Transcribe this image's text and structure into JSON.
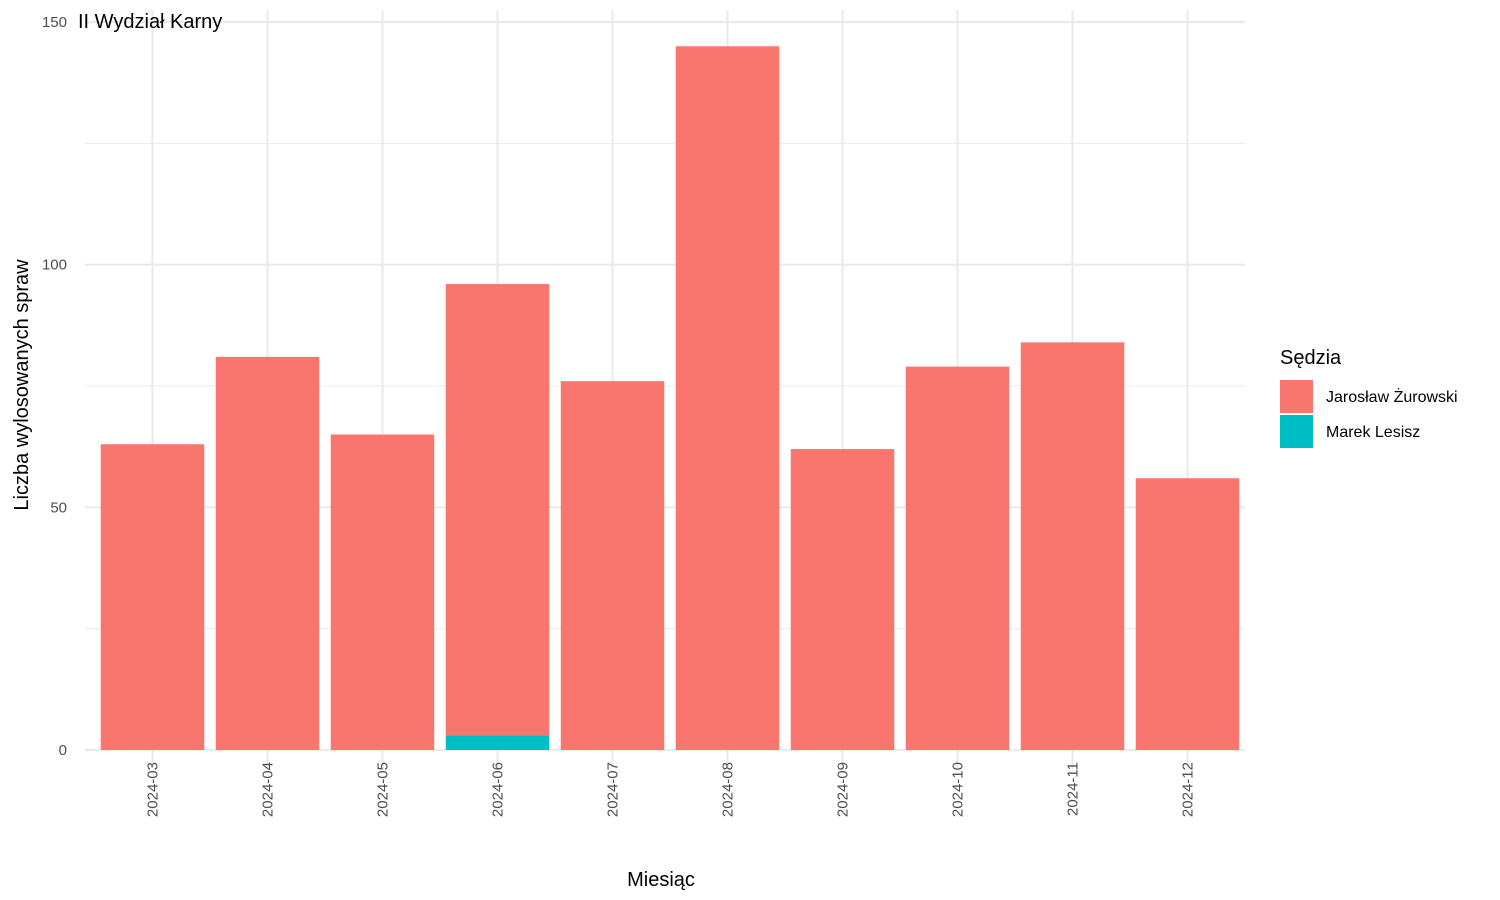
{
  "chart_data": {
    "type": "bar",
    "stacked": true,
    "title": "II Wydział Karny",
    "xlabel": "Miesiąc",
    "ylabel": "Liczba wylosowanych spraw",
    "categories": [
      "2024-03",
      "2024-04",
      "2024-05",
      "2024-06",
      "2024-07",
      "2024-08",
      "2024-09",
      "2024-10",
      "2024-11",
      "2024-12"
    ],
    "series": [
      {
        "name": "Jarosław Żurowski",
        "color": "#F8766D",
        "values": [
          63,
          81,
          65,
          93,
          76,
          145,
          62,
          79,
          84,
          56
        ]
      },
      {
        "name": "Marek Lesisz",
        "color": "#00BFC4",
        "values": [
          0,
          0,
          0,
          3,
          0,
          0,
          0,
          0,
          0,
          0
        ]
      }
    ],
    "ylim": [
      0,
      150
    ],
    "yticks": [
      0,
      50,
      100,
      150
    ],
    "grid": true,
    "legend": {
      "title": "Sędzia",
      "position": "right"
    }
  }
}
